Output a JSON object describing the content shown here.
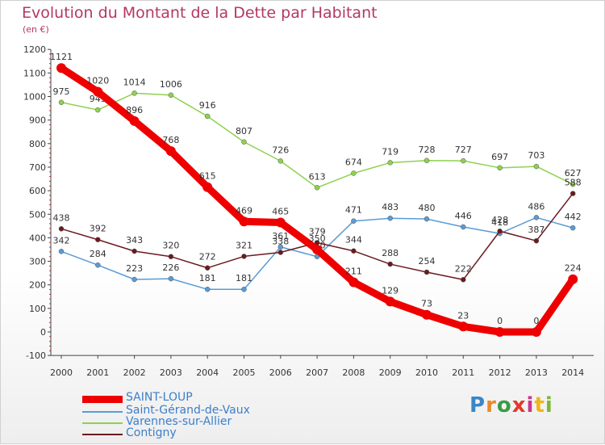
{
  "title": "Evolution du Montant de la Dette par Habitant",
  "unit": "(en €)",
  "logo": {
    "text": "Proxiti",
    "colors": [
      "#3a86c8",
      "#e98a2b",
      "#3a9a46",
      "#e0392b",
      "#c8368a",
      "#f2b418",
      "#79b933"
    ]
  },
  "chart_data": {
    "type": "line",
    "x": [
      "2000",
      "2001",
      "2002",
      "2003",
      "2004",
      "2005",
      "2006",
      "2007",
      "2008",
      "2009",
      "2010",
      "2011",
      "2012",
      "2013",
      "2014"
    ],
    "ylim": [
      -100,
      1200
    ],
    "yticks": [
      -100,
      0,
      100,
      200,
      300,
      400,
      500,
      600,
      700,
      800,
      900,
      1000,
      1100,
      1200
    ],
    "grid": false,
    "legend_position": "bottom-left",
    "series": [
      {
        "name": "SAINT-LOUP",
        "color": "#ee0000",
        "values": [
          1121,
          1020,
          896,
          768,
          615,
          469,
          465,
          350,
          211,
          129,
          73,
          23,
          0,
          0,
          224
        ]
      },
      {
        "name": "Saint-Gérand-de-Vaux",
        "color": "#5b9bd5",
        "values": [
          342,
          284,
          223,
          226,
          181,
          181,
          361,
          320,
          471,
          483,
          480,
          446,
          418,
          486,
          442
        ]
      },
      {
        "name": "Varennes-sur-Allier",
        "color": "#8fd14f",
        "values": [
          975,
          943,
          1014,
          1006,
          916,
          807,
          726,
          613,
          674,
          719,
          728,
          727,
          697,
          703,
          627
        ]
      },
      {
        "name": "Contigny",
        "color": "#6b1a1e",
        "values": [
          438,
          392,
          343,
          320,
          272,
          321,
          338,
          379,
          344,
          288,
          254,
          222,
          428,
          387,
          588
        ]
      }
    ]
  }
}
